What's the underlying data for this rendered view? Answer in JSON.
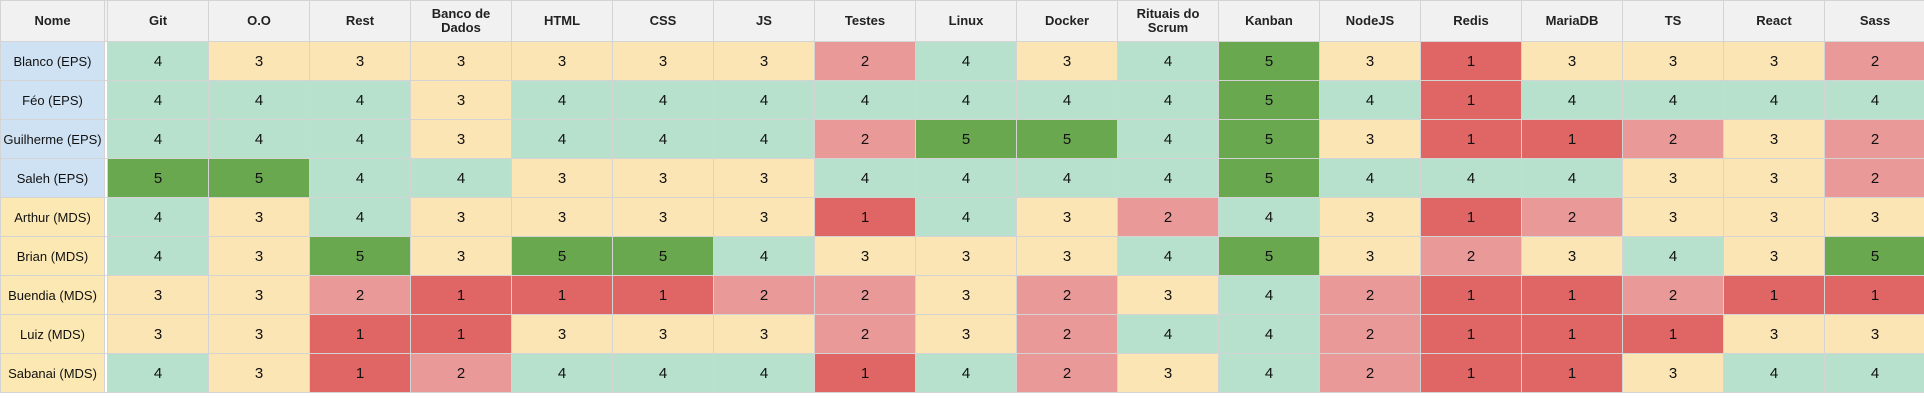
{
  "header": {
    "name_label": "Nome",
    "columns": [
      "Git",
      "O.O",
      "Rest",
      "Banco de Dados",
      "HTML",
      "CSS",
      "JS",
      "Testes",
      "Linux",
      "Docker",
      "Rituais do Scrum",
      "Kanban",
      "NodeJS",
      "Redis",
      "MariaDB",
      "TS",
      "React",
      "Sass"
    ]
  },
  "colors": {
    "1": "#e06666",
    "2": "#ea9999",
    "3": "#fce5b4",
    "4": "#b7e1cd",
    "5": "#6aa84f",
    "eps_name": "#cfe2f3",
    "mds_name": "#fce8b2",
    "header": "#f1f1f1"
  },
  "rows": [
    {
      "name": "Blanco (EPS)",
      "group": "eps",
      "values": [
        4,
        3,
        3,
        3,
        3,
        3,
        3,
        2,
        4,
        3,
        4,
        5,
        3,
        1,
        3,
        3,
        3,
        2
      ]
    },
    {
      "name": "Féo (EPS)",
      "group": "eps",
      "values": [
        4,
        4,
        4,
        3,
        4,
        4,
        4,
        4,
        4,
        4,
        4,
        5,
        4,
        1,
        4,
        4,
        4,
        4
      ]
    },
    {
      "name": "Guilherme (EPS)",
      "group": "eps",
      "values": [
        4,
        4,
        4,
        3,
        4,
        4,
        4,
        2,
        5,
        5,
        4,
        5,
        3,
        1,
        1,
        2,
        3,
        2
      ]
    },
    {
      "name": "Saleh (EPS)",
      "group": "eps",
      "values": [
        5,
        5,
        4,
        4,
        3,
        3,
        3,
        4,
        4,
        4,
        4,
        5,
        4,
        4,
        4,
        3,
        3,
        2
      ]
    },
    {
      "name": "Arthur (MDS)",
      "group": "mds",
      "values": [
        4,
        3,
        4,
        3,
        3,
        3,
        3,
        1,
        4,
        3,
        2,
        4,
        3,
        1,
        2,
        3,
        3,
        3
      ]
    },
    {
      "name": "Brian (MDS)",
      "group": "mds",
      "values": [
        4,
        3,
        5,
        3,
        5,
        5,
        4,
        3,
        3,
        3,
        4,
        5,
        3,
        2,
        3,
        4,
        3,
        5
      ]
    },
    {
      "name": "Buendia (MDS)",
      "group": "mds",
      "values": [
        3,
        3,
        2,
        1,
        1,
        1,
        2,
        2,
        3,
        2,
        3,
        4,
        2,
        1,
        1,
        2,
        1,
        1
      ]
    },
    {
      "name": "Luiz (MDS)",
      "group": "mds",
      "values": [
        3,
        3,
        1,
        1,
        3,
        3,
        3,
        2,
        3,
        2,
        4,
        4,
        2,
        1,
        1,
        1,
        3,
        3
      ]
    },
    {
      "name": "Sabanai (MDS)",
      "group": "mds",
      "values": [
        4,
        3,
        1,
        2,
        4,
        4,
        4,
        1,
        4,
        2,
        3,
        4,
        2,
        1,
        1,
        3,
        4,
        4
      ]
    }
  ]
}
